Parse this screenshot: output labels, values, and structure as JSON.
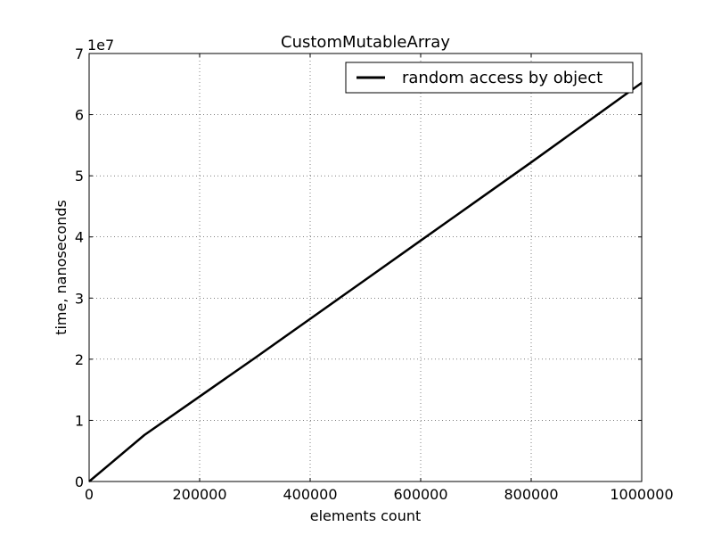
{
  "chart_data": {
    "type": "line",
    "title": "CustomMutableArray",
    "xlabel": "elements count",
    "ylabel": "time, nanoseconds",
    "y_offset_label": "1e7",
    "xlim": [
      0,
      1000000
    ],
    "ylim": [
      0,
      70000000
    ],
    "x_ticks": [
      0,
      200000,
      400000,
      600000,
      800000,
      1000000
    ],
    "x_tick_labels": [
      "0",
      "200000",
      "400000",
      "600000",
      "800000",
      "1000000"
    ],
    "y_ticks": [
      0,
      10000000,
      20000000,
      30000000,
      40000000,
      50000000,
      60000000,
      70000000
    ],
    "y_tick_labels": [
      "0",
      "1",
      "2",
      "3",
      "4",
      "5",
      "6",
      "7"
    ],
    "grid": true,
    "legend_position": "top-right",
    "series": [
      {
        "name": "random access by object",
        "color": "#000000",
        "x": [
          0,
          100000,
          200000,
          300000,
          400000,
          500000,
          600000,
          700000,
          800000,
          900000,
          1000000
        ],
        "y": [
          0,
          7600000,
          13900000,
          20200000,
          26600000,
          33000000,
          39400000,
          45800000,
          52200000,
          58700000,
          65200000
        ]
      }
    ]
  }
}
